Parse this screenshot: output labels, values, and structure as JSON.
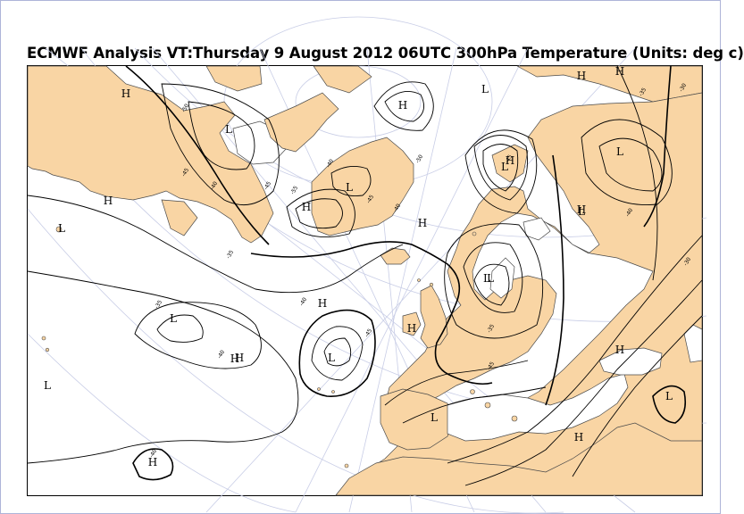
{
  "title": "ECMWF  Analysis VT:Thursday 9 August 2012 06UTC 300hPa Temperature (Units: deg c)",
  "colors": {
    "land": "#f9d5a4",
    "sea": "#ffffff",
    "contour": "#000000",
    "graticule": "#c8cde6"
  },
  "pressure_centers": [
    {
      "type": "H"
    },
    {
      "type": "L"
    },
    {
      "type": "H"
    },
    {
      "type": "L"
    },
    {
      "type": "H"
    },
    {
      "type": "L"
    },
    {
      "type": "H"
    },
    {
      "type": "H"
    },
    {
      "type": "L"
    },
    {
      "type": "H"
    },
    {
      "type": "H"
    },
    {
      "type": "L"
    },
    {
      "type": "L"
    },
    {
      "type": "H"
    },
    {
      "type": "L"
    },
    {
      "type": "H"
    },
    {
      "type": "L"
    },
    {
      "type": "H"
    },
    {
      "type": "L"
    },
    {
      "type": "H"
    },
    {
      "type": "L"
    },
    {
      "type": "H"
    },
    {
      "type": "L"
    },
    {
      "type": "H"
    },
    {
      "type": "L"
    },
    {
      "type": "L"
    },
    {
      "type": "H"
    },
    {
      "type": "H"
    },
    {
      "type": "L"
    },
    {
      "type": "H"
    }
  ],
  "contour_labels": [
    "-50",
    "-45",
    "-40",
    "-45",
    "-40",
    "-55",
    "-45",
    "-40",
    "-50",
    "-45",
    "-40",
    "-35",
    "-35",
    "-40",
    "-45",
    "-35",
    "-30",
    "-40",
    "-35",
    "-30",
    "-45",
    "-40"
  ]
}
